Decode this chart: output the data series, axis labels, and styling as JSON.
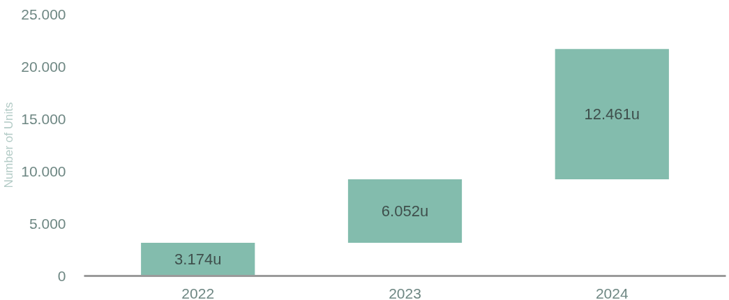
{
  "chart_data": {
    "type": "bar",
    "ylabel": "Number of Units",
    "categories": [
      "2022",
      "2023",
      "2024"
    ],
    "values": [
      3174,
      6052,
      12461
    ],
    "base": [
      0,
      3174,
      9226
    ],
    "value_labels": [
      "3.174u",
      "6.052u",
      "12.461u"
    ],
    "color": "#83bcad",
    "ylim": [
      0,
      25000
    ],
    "yticks": [
      0,
      {
        "value": 5000,
        "label": "5.000"
      },
      {
        "value": 10000,
        "label": "10.000"
      },
      {
        "value": 15000,
        "label": "15.000"
      },
      {
        "value": 20000,
        "label": "20.000"
      },
      {
        "value": 25000,
        "label": "25.000"
      }
    ],
    "grid": false
  }
}
